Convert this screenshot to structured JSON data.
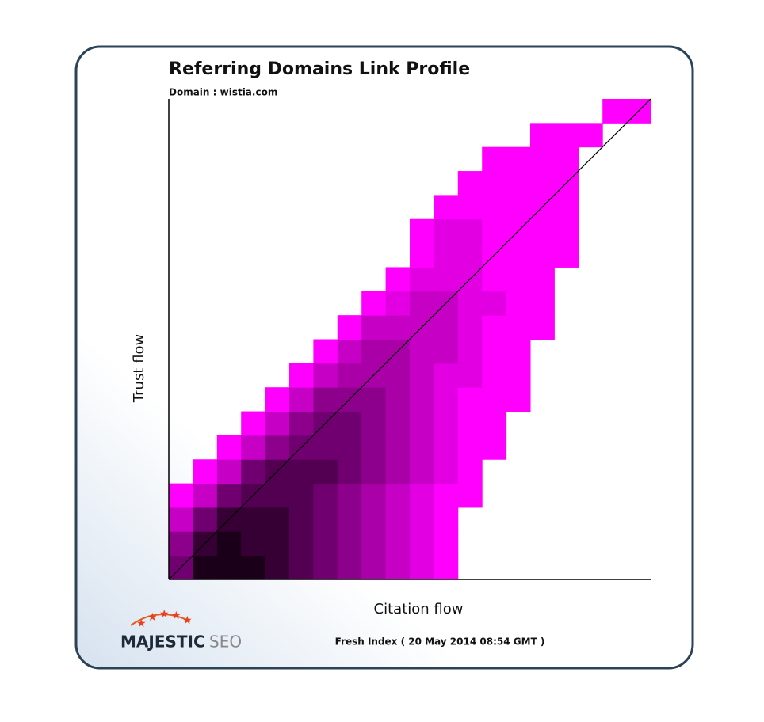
{
  "chart_data": {
    "type": "heatmap",
    "title": "Referring Domains Link Profile",
    "subtitle": "Domain : wistia.com",
    "x_label": "Citation flow",
    "y_label": "Trust flow",
    "footer": "Fresh Index ( 20 May 2014 08:54 GMT )",
    "brand": [
      "MAJESTIC",
      "SEO"
    ],
    "xlim": [
      0,
      100
    ],
    "ylim": [
      0,
      100
    ],
    "diagonal": true,
    "colors": [
      "#ff00ff",
      "#1a0018"
    ],
    "z": [
      [
        6,
        9,
        9,
        9,
        8,
        7,
        6,
        5,
        4,
        3,
        2,
        1,
        0,
        0,
        0,
        0,
        0,
        0,
        0,
        0
      ],
      [
        5,
        8,
        9,
        8,
        8,
        7,
        6,
        5,
        4,
        3,
        2,
        1,
        0,
        0,
        0,
        0,
        0,
        0,
        0,
        0
      ],
      [
        3,
        6,
        8,
        8,
        8,
        7,
        6,
        5,
        4,
        3,
        2,
        1,
        0,
        0,
        0,
        0,
        0,
        0,
        0,
        0
      ],
      [
        1,
        3,
        6,
        7,
        7,
        7,
        6,
        5,
        4,
        3,
        2,
        1,
        1,
        0,
        0,
        0,
        0,
        0,
        0,
        0
      ],
      [
        0,
        1,
        3,
        6,
        7,
        7,
        7,
        6,
        5,
        4,
        3,
        2,
        1,
        0,
        0,
        0,
        0,
        0,
        0,
        0
      ],
      [
        0,
        0,
        1,
        3,
        5,
        6,
        6,
        6,
        5,
        4,
        3,
        2,
        1,
        1,
        0,
        0,
        0,
        0,
        0,
        0
      ],
      [
        0,
        0,
        0,
        1,
        3,
        5,
        6,
        6,
        5,
        4,
        3,
        2,
        1,
        1,
        0,
        0,
        0,
        0,
        0,
        0
      ],
      [
        0,
        0,
        0,
        0,
        1,
        3,
        5,
        5,
        5,
        4,
        3,
        2,
        1,
        1,
        1,
        0,
        0,
        0,
        0,
        0
      ],
      [
        0,
        0,
        0,
        0,
        0,
        1,
        3,
        4,
        4,
        4,
        3,
        2,
        2,
        1,
        1,
        0,
        0,
        0,
        0,
        0
      ],
      [
        0,
        0,
        0,
        0,
        0,
        0,
        1,
        3,
        4,
        4,
        3,
        3,
        2,
        1,
        1,
        0,
        0,
        0,
        0,
        0
      ],
      [
        0,
        0,
        0,
        0,
        0,
        0,
        0,
        1,
        3,
        3,
        3,
        3,
        2,
        1,
        1,
        1,
        0,
        0,
        0,
        0
      ],
      [
        0,
        0,
        0,
        0,
        0,
        0,
        0,
        0,
        1,
        2,
        3,
        3,
        2,
        2,
        1,
        1,
        0,
        0,
        0,
        0
      ],
      [
        0,
        0,
        0,
        0,
        0,
        0,
        0,
        0,
        0,
        1,
        2,
        2,
        2,
        1,
        1,
        1,
        0,
        0,
        0,
        0
      ],
      [
        0,
        0,
        0,
        0,
        0,
        0,
        0,
        0,
        0,
        0,
        1,
        2,
        2,
        1,
        1,
        1,
        1,
        0,
        0,
        0
      ],
      [
        0,
        0,
        0,
        0,
        0,
        0,
        0,
        0,
        0,
        0,
        1,
        2,
        2,
        1,
        1,
        1,
        1,
        0,
        0,
        0
      ],
      [
        0,
        0,
        0,
        0,
        0,
        0,
        0,
        0,
        0,
        0,
        0,
        1,
        1,
        1,
        1,
        1,
        1,
        0,
        0,
        0
      ],
      [
        0,
        0,
        0,
        0,
        0,
        0,
        0,
        0,
        0,
        0,
        0,
        0,
        1,
        1,
        1,
        1,
        1,
        0,
        0,
        0
      ],
      [
        0,
        0,
        0,
        0,
        0,
        0,
        0,
        0,
        0,
        0,
        0,
        0,
        0,
        1,
        1,
        1,
        1,
        0,
        0,
        0
      ],
      [
        0,
        0,
        0,
        0,
        0,
        0,
        0,
        0,
        0,
        0,
        0,
        0,
        0,
        0,
        0,
        1,
        1,
        1,
        0,
        0
      ],
      [
        0,
        0,
        0,
        0,
        0,
        0,
        0,
        0,
        0,
        0,
        0,
        0,
        0,
        0,
        0,
        0,
        0,
        0,
        1,
        1
      ]
    ]
  }
}
